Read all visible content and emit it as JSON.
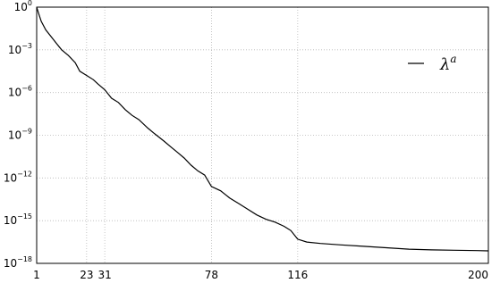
{
  "chart_data": {
    "type": "line",
    "title": "",
    "xlabel": "",
    "ylabel": "",
    "xlim": [
      1,
      200
    ],
    "ylim_log10": [
      -18,
      0
    ],
    "y_scale": "log",
    "grid": "dotted, at labeled x ticks and every y decade",
    "legend_position": "top-right",
    "x_ticks": [
      {
        "value": 1,
        "label": "1"
      },
      {
        "value": 23,
        "label": "23"
      },
      {
        "value": 31,
        "label": "31"
      },
      {
        "value": 78,
        "label": "78"
      },
      {
        "value": 116,
        "label": "116"
      },
      {
        "value": 200,
        "label": "200"
      }
    ],
    "y_ticks": [
      {
        "exp": 0,
        "base": "10",
        "sup": "0"
      },
      {
        "exp": -3,
        "base": "10",
        "sup": "−3"
      },
      {
        "exp": -6,
        "base": "10",
        "sup": "−6"
      },
      {
        "exp": -9,
        "base": "10",
        "sup": "−9"
      },
      {
        "exp": -12,
        "base": "10",
        "sup": "−12"
      },
      {
        "exp": -15,
        "base": "10",
        "sup": "−15"
      },
      {
        "exp": -18,
        "base": "10",
        "sup": "−18"
      }
    ],
    "series": [
      {
        "name_base": "λ",
        "name_sup": "a",
        "color": "#000000",
        "points_log10": [
          [
            1,
            0
          ],
          [
            2,
            -0.5
          ],
          [
            3,
            -1.0
          ],
          [
            5,
            -1.6
          ],
          [
            8,
            -2.2
          ],
          [
            10,
            -2.6
          ],
          [
            12,
            -3.0
          ],
          [
            15,
            -3.4
          ],
          [
            18,
            -3.9
          ],
          [
            20,
            -4.5
          ],
          [
            23,
            -4.8
          ],
          [
            26,
            -5.1
          ],
          [
            28,
            -5.4
          ],
          [
            31,
            -5.8
          ],
          [
            34,
            -6.4
          ],
          [
            37,
            -6.7
          ],
          [
            40,
            -7.2
          ],
          [
            43,
            -7.6
          ],
          [
            46,
            -7.9
          ],
          [
            50,
            -8.5
          ],
          [
            53,
            -8.9
          ],
          [
            57,
            -9.4
          ],
          [
            60,
            -9.8
          ],
          [
            63,
            -10.2
          ],
          [
            66,
            -10.6
          ],
          [
            69,
            -11.1
          ],
          [
            72,
            -11.5
          ],
          [
            75,
            -11.8
          ],
          [
            78,
            -12.6
          ],
          [
            82,
            -12.9
          ],
          [
            86,
            -13.4
          ],
          [
            90,
            -13.8
          ],
          [
            94,
            -14.2
          ],
          [
            98,
            -14.6
          ],
          [
            102,
            -14.9
          ],
          [
            106,
            -15.1
          ],
          [
            110,
            -15.4
          ],
          [
            113,
            -15.7
          ],
          [
            116,
            -16.3
          ],
          [
            120,
            -16.5
          ],
          [
            126,
            -16.6
          ],
          [
            135,
            -16.7
          ],
          [
            145,
            -16.8
          ],
          [
            155,
            -16.9
          ],
          [
            165,
            -17.0
          ],
          [
            175,
            -17.05
          ],
          [
            185,
            -17.08
          ],
          [
            195,
            -17.1
          ],
          [
            200,
            -17.12
          ]
        ]
      }
    ]
  }
}
